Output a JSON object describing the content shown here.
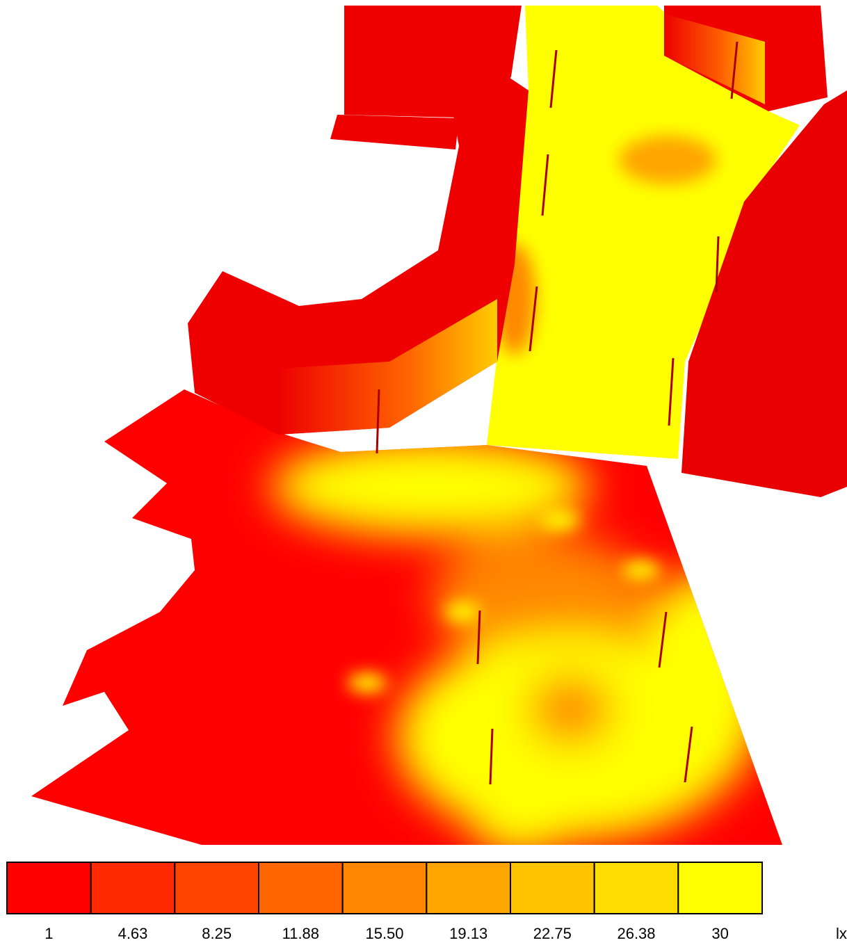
{
  "legend": {
    "labels": [
      "1",
      "4.63",
      "8.25",
      "11.88",
      "15.50",
      "19.13",
      "22.75",
      "26.38",
      "30"
    ],
    "colors": [
      "#ff0000",
      "#ff2a00",
      "#ff4400",
      "#ff6600",
      "#ff8800",
      "#ffa500",
      "#ffc300",
      "#ffdd00",
      "#ffff00"
    ],
    "unit": "lx"
  }
}
